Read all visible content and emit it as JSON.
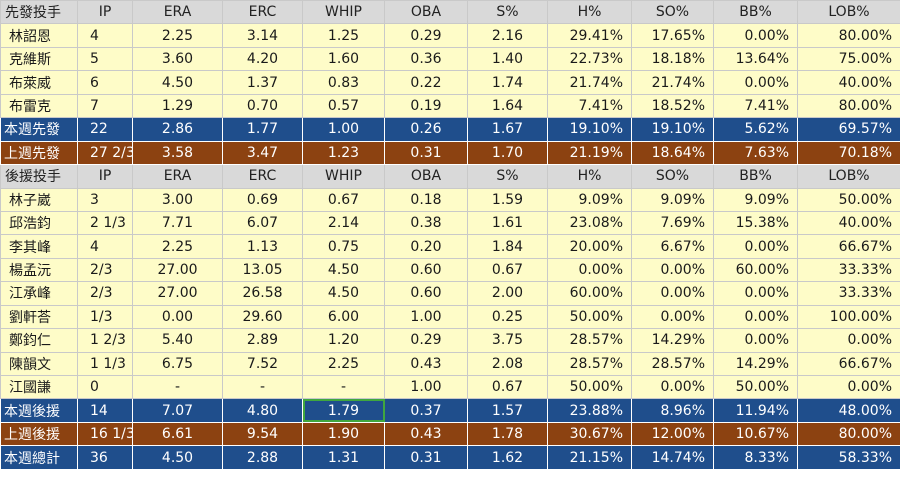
{
  "columns": [
    "IP",
    "ERA",
    "ERC",
    "WHIP",
    "OBA",
    "S%",
    "H%",
    "SO%",
    "BB%",
    "LOB%"
  ],
  "sections": [
    {
      "header": "先發投手",
      "rows": [
        {
          "name": "林詔恩",
          "values": [
            "4",
            "2.25",
            "3.14",
            "1.25",
            "0.29",
            "2.16",
            "29.41%",
            "17.65%",
            "0.00%",
            "80.00%"
          ]
        },
        {
          "name": "克維斯",
          "values": [
            "5",
            "3.60",
            "4.20",
            "1.60",
            "0.36",
            "1.40",
            "22.73%",
            "18.18%",
            "13.64%",
            "75.00%"
          ]
        },
        {
          "name": "布萊威",
          "values": [
            "6",
            "4.50",
            "1.37",
            "0.83",
            "0.22",
            "1.74",
            "21.74%",
            "21.74%",
            "0.00%",
            "40.00%"
          ]
        },
        {
          "name": "布雷克",
          "values": [
            "7",
            "1.29",
            "0.70",
            "0.57",
            "0.19",
            "1.64",
            "7.41%",
            "18.52%",
            "7.41%",
            "80.00%"
          ]
        }
      ],
      "summaries": [
        {
          "name": "本週先發",
          "style": "blue",
          "values": [
            "22",
            "2.86",
            "1.77",
            "1.00",
            "0.26",
            "1.67",
            "19.10%",
            "19.10%",
            "5.62%",
            "69.57%"
          ]
        },
        {
          "name": "上週先發",
          "style": "brown",
          "values": [
            "27 2/3",
            "3.58",
            "3.47",
            "1.23",
            "0.31",
            "1.70",
            "21.19%",
            "18.64%",
            "7.63%",
            "70.18%"
          ]
        }
      ]
    },
    {
      "header": "後援投手",
      "rows": [
        {
          "name": "林子崴",
          "values": [
            "3",
            "3.00",
            "0.69",
            "0.67",
            "0.18",
            "1.59",
            "9.09%",
            "9.09%",
            "9.09%",
            "50.00%"
          ]
        },
        {
          "name": "邱浩鈞",
          "values": [
            "2 1/3",
            "7.71",
            "6.07",
            "2.14",
            "0.38",
            "1.61",
            "23.08%",
            "7.69%",
            "15.38%",
            "40.00%"
          ]
        },
        {
          "name": "李其峰",
          "values": [
            "4",
            "2.25",
            "1.13",
            "0.75",
            "0.20",
            "1.84",
            "20.00%",
            "6.67%",
            "0.00%",
            "66.67%"
          ]
        },
        {
          "name": "楊孟沅",
          "values": [
            "2/3",
            "27.00",
            "13.05",
            "4.50",
            "0.60",
            "0.67",
            "0.00%",
            "0.00%",
            "60.00%",
            "33.33%"
          ]
        },
        {
          "name": "江承峰",
          "values": [
            "2/3",
            "27.00",
            "26.58",
            "4.50",
            "0.60",
            "2.00",
            "60.00%",
            "0.00%",
            "0.00%",
            "33.33%"
          ]
        },
        {
          "name": "劉軒荅",
          "values": [
            "1/3",
            "0.00",
            "29.60",
            "6.00",
            "1.00",
            "0.25",
            "50.00%",
            "0.00%",
            "0.00%",
            "100.00%"
          ]
        },
        {
          "name": "鄭鈞仁",
          "values": [
            "1 2/3",
            "5.40",
            "2.89",
            "1.20",
            "0.29",
            "3.75",
            "28.57%",
            "14.29%",
            "0.00%",
            "0.00%"
          ]
        },
        {
          "name": "陳韻文",
          "values": [
            "1 1/3",
            "6.75",
            "7.52",
            "2.25",
            "0.43",
            "2.08",
            "28.57%",
            "28.57%",
            "14.29%",
            "66.67%"
          ]
        },
        {
          "name": "江國謙",
          "values": [
            "0",
            "-",
            "-",
            "-",
            "1.00",
            "0.67",
            "50.00%",
            "0.00%",
            "50.00%",
            "0.00%"
          ]
        }
      ],
      "summaries": [
        {
          "name": "本週後援",
          "style": "blue",
          "values": [
            "14",
            "7.07",
            "4.80",
            "1.79",
            "0.37",
            "1.57",
            "23.88%",
            "8.96%",
            "11.94%",
            "48.00%"
          ],
          "selected_col": 3
        },
        {
          "name": "上週後援",
          "style": "brown",
          "values": [
            "16 1/3",
            "6.61",
            "9.54",
            "1.90",
            "0.43",
            "1.78",
            "30.67%",
            "12.00%",
            "10.67%",
            "80.00%"
          ]
        },
        {
          "name": "本週總計",
          "style": "blue",
          "values": [
            "36",
            "4.50",
            "2.88",
            "1.31",
            "0.31",
            "1.62",
            "21.15%",
            "14.74%",
            "8.33%",
            "58.33%"
          ]
        }
      ]
    }
  ],
  "colors": {
    "header_bg": "#d9d9d9",
    "row_bg": "#fefcc8",
    "blue": "#1f4e8c",
    "brown": "#8c4211",
    "selection": "#3fa73f"
  }
}
